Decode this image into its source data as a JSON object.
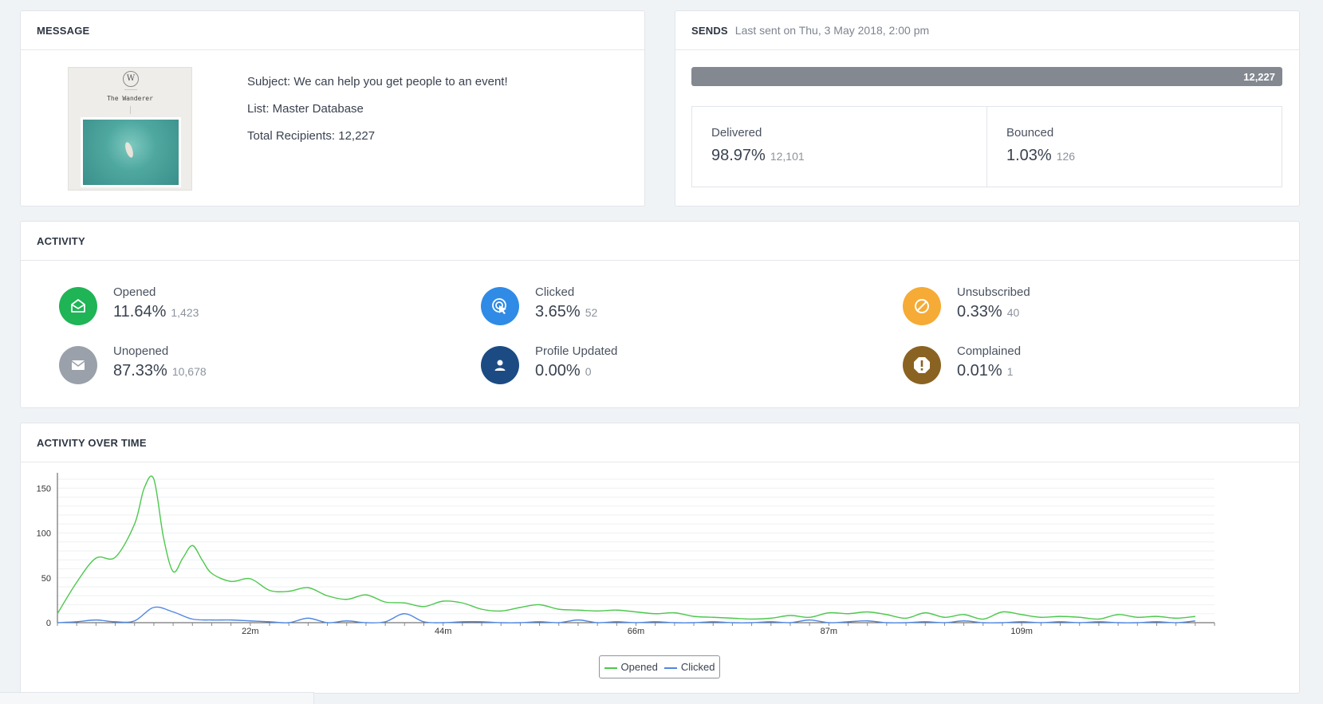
{
  "message": {
    "title": "MESSAGE",
    "thumbnail": {
      "logo_letter": "W",
      "name": "The Wanderer"
    },
    "subject": "Subject: We can help you get people to an event!",
    "list": "List: Master Database",
    "recipients": "Total Recipients: 12,227"
  },
  "sends": {
    "title": "SENDS",
    "last_sent": "Last sent on Thu, 3 May 2018, 2:00 pm",
    "progress_label": "12,227",
    "progress_fraction": 1.0,
    "delivered": {
      "label": "Delivered",
      "pct": "98.97%",
      "count": "12,101"
    },
    "bounced": {
      "label": "Bounced",
      "pct": "1.03%",
      "count": "126"
    }
  },
  "activity": {
    "title": "ACTIVITY",
    "items": [
      {
        "label": "Opened",
        "pct": "11.64%",
        "count": "1,423",
        "icon": "envelope-open-icon",
        "color": "#1fb455"
      },
      {
        "label": "Clicked",
        "pct": "3.65%",
        "count": "52",
        "icon": "pointer-click-icon",
        "color": "#2f8be6"
      },
      {
        "label": "Unsubscribed",
        "pct": "0.33%",
        "count": "40",
        "icon": "block-icon",
        "color": "#f5ab35"
      },
      {
        "label": "Unopened",
        "pct": "87.33%",
        "count": "10,678",
        "icon": "envelope-icon",
        "color": "#9aa1aa"
      },
      {
        "label": "Profile Updated",
        "pct": "0.00%",
        "count": "0",
        "icon": "user-icon",
        "color": "#1c4b84"
      },
      {
        "label": "Complained",
        "pct": "0.01%",
        "count": "1",
        "icon": "alert-icon",
        "color": "#8a6322"
      }
    ]
  },
  "activity_over_time": {
    "title": "ACTIVITY OVER TIME"
  },
  "chart_data": {
    "type": "line",
    "ylim": [
      0,
      160
    ],
    "yticks": [
      0,
      50,
      100,
      150
    ],
    "xlim": [
      0,
      120
    ],
    "xticks": [
      {
        "value": 20,
        "label": "22m"
      },
      {
        "value": 40,
        "label": "44m"
      },
      {
        "value": 60,
        "label": "66m"
      },
      {
        "value": 80,
        "label": "87m"
      },
      {
        "value": 100,
        "label": "109m"
      }
    ],
    "grid": true,
    "legend_position": "bottom-center",
    "series": [
      {
        "name": "Opened",
        "color": "#4cc84c",
        "x": [
          0,
          2,
          4,
          6,
          8,
          9,
          10,
          11,
          12,
          13,
          14,
          15,
          16,
          18,
          20,
          22,
          24,
          26,
          28,
          30,
          32,
          34,
          36,
          38,
          40,
          42,
          44,
          46,
          48,
          50,
          52,
          54,
          56,
          58,
          60,
          62,
          64,
          66,
          68,
          70,
          72,
          74,
          76,
          78,
          80,
          82,
          84,
          86,
          88,
          90,
          92,
          94,
          96,
          98,
          100,
          102,
          104,
          106,
          108,
          110,
          112,
          114,
          116,
          118
        ],
        "values": [
          10,
          45,
          72,
          73,
          110,
          150,
          160,
          95,
          57,
          72,
          86,
          70,
          55,
          46,
          49,
          36,
          35,
          39,
          30,
          26,
          31,
          23,
          22,
          18,
          24,
          22,
          15,
          13,
          17,
          20,
          15,
          14,
          13,
          14,
          12,
          10,
          11,
          7,
          6,
          5,
          4,
          5,
          8,
          6,
          11,
          10,
          12,
          9,
          5,
          11,
          6,
          9,
          4,
          12,
          9,
          6,
          7,
          6,
          4,
          9,
          6,
          7,
          5,
          7
        ]
      },
      {
        "name": "Clicked",
        "color": "#4f86e0",
        "x": [
          0,
          2,
          4,
          6,
          8,
          10,
          12,
          14,
          16,
          18,
          20,
          22,
          24,
          26,
          28,
          30,
          32,
          34,
          36,
          38,
          40,
          42,
          44,
          46,
          48,
          50,
          52,
          54,
          56,
          58,
          60,
          62,
          64,
          66,
          68,
          70,
          72,
          74,
          76,
          78,
          80,
          82,
          84,
          86,
          88,
          90,
          92,
          94,
          96,
          98,
          100,
          102,
          104,
          106,
          108,
          110,
          112,
          114,
          116,
          118
        ],
        "values": [
          0,
          1,
          3,
          1,
          2,
          17,
          12,
          4,
          3,
          3,
          2,
          1,
          0,
          5,
          0,
          2,
          0,
          1,
          10,
          1,
          0,
          1,
          1,
          0,
          0,
          1,
          0,
          3,
          0,
          1,
          0,
          1,
          0,
          0,
          1,
          0,
          0,
          1,
          0,
          3,
          0,
          1,
          2,
          0,
          0,
          1,
          0,
          2,
          0,
          0,
          1,
          0,
          1,
          0,
          1,
          0,
          0,
          1,
          0,
          2
        ]
      }
    ]
  }
}
